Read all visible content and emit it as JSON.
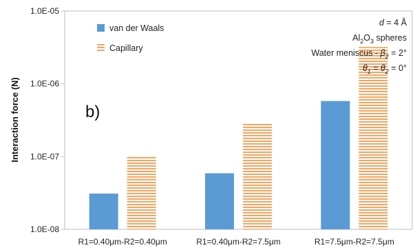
{
  "chart_data": {
    "type": "bar",
    "ylabel": "Interaction force (N)",
    "yscale": "log",
    "ylim": [
      1e-08,
      1e-05
    ],
    "ytick_labels": [
      "1.0E-08",
      "1.0E-07",
      "1.0E-06",
      "1.0E-05"
    ],
    "ytick_values": [
      1e-08,
      1e-07,
      1e-06,
      1e-05
    ],
    "categories": [
      "R1=0.40μm-R2=0.40μm",
      "R1=0.40μm-R2=7.5μm",
      "R1=7.5μm-R2=7.5μm"
    ],
    "series": [
      {
        "name": "van der Waals",
        "values": [
          3.1e-08,
          5.9e-08,
          5.8e-07
        ],
        "color": "#5b9bd5",
        "pattern": "solid"
      },
      {
        "name": "Capillary",
        "values": [
          9.9e-08,
          2.9e-07,
          3.2e-06
        ],
        "color": "#f4a460",
        "pattern": "horizontal-stripes"
      }
    ],
    "legend_position": "top-left",
    "panel_label": "b)",
    "annotations": {
      "line1_italic": "d",
      "line1_rest": " = 4 Å",
      "line2_a": "Al",
      "line2_sub": "2",
      "line2_b": "O",
      "line2_sub2": "3",
      "line2_c": " spheres",
      "line3_a": "Water meniscus - ",
      "line3_italic": "β",
      "line3_sub": "2",
      "line3_rest": " = 2°",
      "line4_italic1": "θ",
      "line4_sub1": "1",
      "line4_mid": " = ",
      "line4_italic2": "θ",
      "line4_sub2": "2",
      "line4_rest": " = 0°"
    },
    "grid": false
  }
}
